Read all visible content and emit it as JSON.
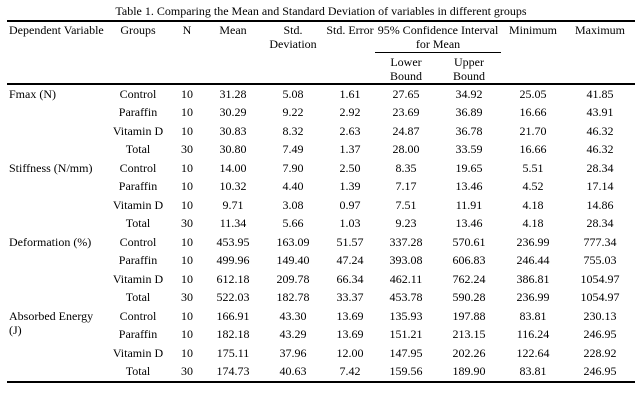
{
  "title": "Table 1. Comparing the Mean and Standard Deviation of variables in different groups",
  "table": {
    "headers": {
      "dependent_variable": "Dependent Variable",
      "groups": "Groups",
      "n": "N",
      "mean": "Mean",
      "std_deviation": "Std. Deviation",
      "std_error": "Std. Error",
      "ci_group": "95% Confidence Interval for Mean",
      "lower_bound": "Lower Bound",
      "upper_bound": "Upper Bound",
      "minimum": "Minimum",
      "maximum": "Maximum"
    },
    "sections": [
      {
        "variable": "Fmax (N)",
        "rows": [
          {
            "group": "Control",
            "n": "10",
            "mean": "31.28",
            "std_deviation": "5.08",
            "std_error": "1.61",
            "lower": "27.65",
            "upper": "34.92",
            "min": "25.05",
            "max": "41.85"
          },
          {
            "group": "Paraffin",
            "n": "10",
            "mean": "30.29",
            "std_deviation": "9.22",
            "std_error": "2.92",
            "lower": "23.69",
            "upper": "36.89",
            "min": "16.66",
            "max": "43.91"
          },
          {
            "group": "Vitamin D",
            "n": "10",
            "mean": "30.83",
            "std_deviation": "8.32",
            "std_error": "2.63",
            "lower": "24.87",
            "upper": "36.78",
            "min": "21.70",
            "max": "46.32"
          },
          {
            "group": "Total",
            "n": "30",
            "mean": "30.80",
            "std_deviation": "7.49",
            "std_error": "1.37",
            "lower": "28.00",
            "upper": "33.59",
            "min": "16.66",
            "max": "46.32"
          }
        ]
      },
      {
        "variable": "Stiffness (N/mm)",
        "rows": [
          {
            "group": "Control",
            "n": "10",
            "mean": "14.00",
            "std_deviation": "7.90",
            "std_error": "2.50",
            "lower": "8.35",
            "upper": "19.65",
            "min": "5.51",
            "max": "28.34"
          },
          {
            "group": "Paraffin",
            "n": "10",
            "mean": "10.32",
            "std_deviation": "4.40",
            "std_error": "1.39",
            "lower": "7.17",
            "upper": "13.46",
            "min": "4.52",
            "max": "17.14"
          },
          {
            "group": "Vitamin D",
            "n": "10",
            "mean": "9.71",
            "std_deviation": "3.08",
            "std_error": "0.97",
            "lower": "7.51",
            "upper": "11.91",
            "min": "4.18",
            "max": "14.86"
          },
          {
            "group": "Total",
            "n": "30",
            "mean": "11.34",
            "std_deviation": "5.66",
            "std_error": "1.03",
            "lower": "9.23",
            "upper": "13.46",
            "min": "4.18",
            "max": "28.34"
          }
        ]
      },
      {
        "variable": "Deformation (%)",
        "rows": [
          {
            "group": "Control",
            "n": "10",
            "mean": "453.95",
            "std_deviation": "163.09",
            "std_error": "51.57",
            "lower": "337.28",
            "upper": "570.61",
            "min": "236.99",
            "max": "777.34"
          },
          {
            "group": "Paraffin",
            "n": "10",
            "mean": "499.96",
            "std_deviation": "149.40",
            "std_error": "47.24",
            "lower": "393.08",
            "upper": "606.83",
            "min": "246.44",
            "max": "755.03"
          },
          {
            "group": "Vitamin D",
            "n": "10",
            "mean": "612.18",
            "std_deviation": "209.78",
            "std_error": "66.34",
            "lower": "462.11",
            "upper": "762.24",
            "min": "386.81",
            "max": "1054.97"
          },
          {
            "group": "Total",
            "n": "30",
            "mean": "522.03",
            "std_deviation": "182.78",
            "std_error": "33.37",
            "lower": "453.78",
            "upper": "590.28",
            "min": "236.99",
            "max": "1054.97"
          }
        ]
      },
      {
        "variable": "Absorbed Energy (J)",
        "rows": [
          {
            "group": "Control",
            "n": "10",
            "mean": "166.91",
            "std_deviation": "43.30",
            "std_error": "13.69",
            "lower": "135.93",
            "upper": "197.88",
            "min": "83.81",
            "max": "230.13"
          },
          {
            "group": "Paraffin",
            "n": "10",
            "mean": "182.18",
            "std_deviation": "43.29",
            "std_error": "13.69",
            "lower": "151.21",
            "upper": "213.15",
            "min": "116.24",
            "max": "246.95"
          },
          {
            "group": "Vitamin D",
            "n": "10",
            "mean": "175.11",
            "std_deviation": "37.96",
            "std_error": "12.00",
            "lower": "147.95",
            "upper": "202.26",
            "min": "122.64",
            "max": "228.92"
          },
          {
            "group": "Total",
            "n": "30",
            "mean": "174.73",
            "std_deviation": "40.63",
            "std_error": "7.42",
            "lower": "159.56",
            "upper": "189.90",
            "min": "83.81",
            "max": "246.95"
          }
        ]
      }
    ]
  }
}
